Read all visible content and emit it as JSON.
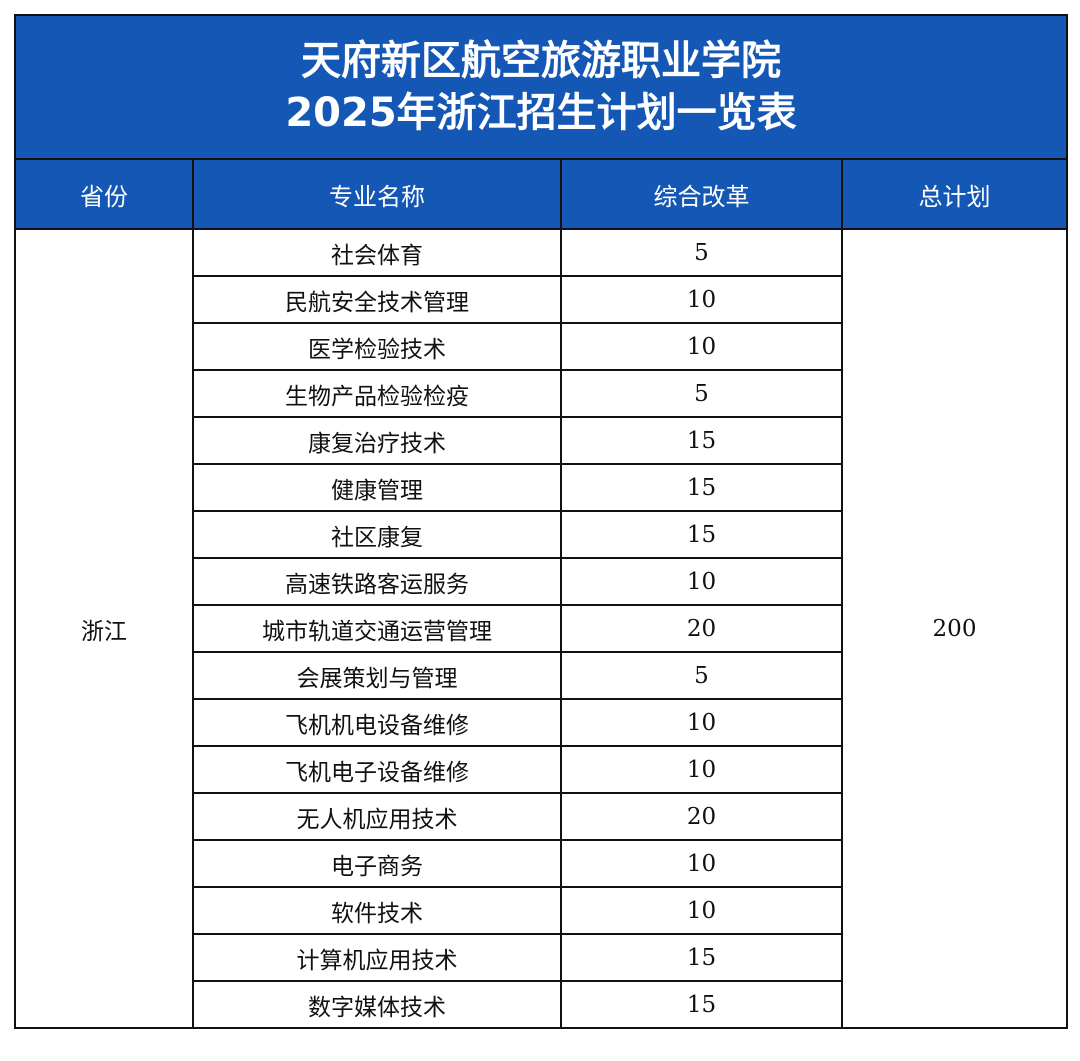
{
  "title_line1": "天府新区航空旅游职业学院",
  "title_line2": "2025年浙江招生计划一览表",
  "colors": {
    "header_bg": "#1557b5",
    "header_text": "#ffffff",
    "border": "#111111"
  },
  "headers": [
    "省份",
    "专业名称",
    "综合改革",
    "总计划"
  ],
  "province": "浙江",
  "total": "200",
  "rows": [
    {
      "major": "社会体育",
      "quota": "5"
    },
    {
      "major": "民航安全技术管理",
      "quota": "10"
    },
    {
      "major": "医学检验技术",
      "quota": "10"
    },
    {
      "major": "生物产品检验检疫",
      "quota": "5"
    },
    {
      "major": "康复治疗技术",
      "quota": "15"
    },
    {
      "major": "健康管理",
      "quota": "15"
    },
    {
      "major": "社区康复",
      "quota": "15"
    },
    {
      "major": "高速铁路客运服务",
      "quota": "10"
    },
    {
      "major": "城市轨道交通运营管理",
      "quota": "20"
    },
    {
      "major": "会展策划与管理",
      "quota": "5"
    },
    {
      "major": "飞机机电设备维修",
      "quota": "10"
    },
    {
      "major": "飞机电子设备维修",
      "quota": "10"
    },
    {
      "major": "无人机应用技术",
      "quota": "20"
    },
    {
      "major": "电子商务",
      "quota": "10"
    },
    {
      "major": "软件技术",
      "quota": "10"
    },
    {
      "major": "计算机应用技术",
      "quota": "15"
    },
    {
      "major": "数字媒体技术",
      "quota": "15"
    }
  ]
}
